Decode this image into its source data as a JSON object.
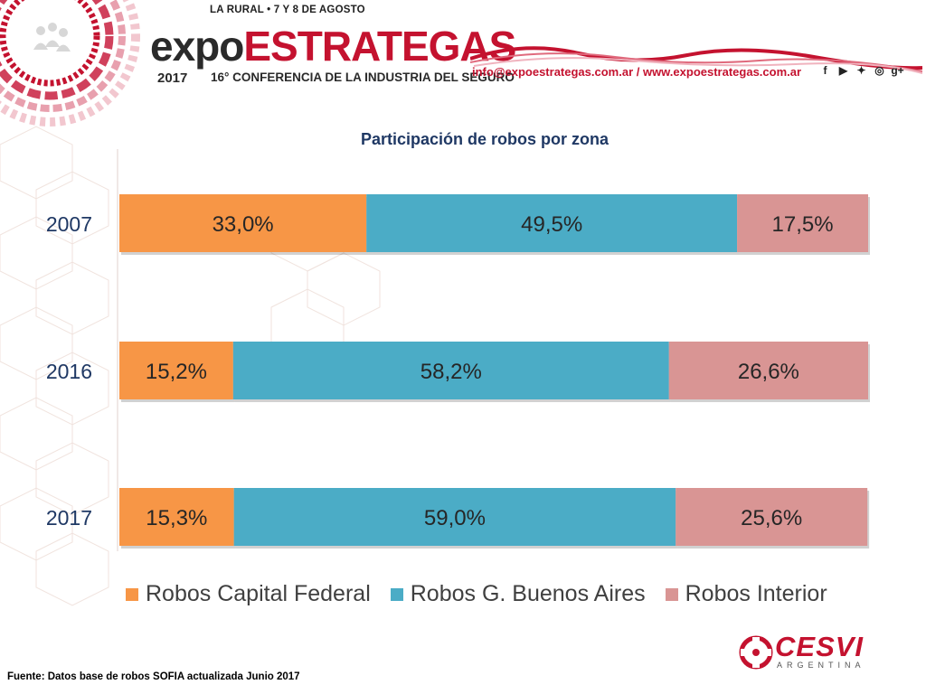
{
  "header": {
    "event_subtitle": "LA RURAL • 7 Y 8 DE AGOSTO",
    "logo_part1": "expo",
    "logo_part2": "ESTRATEGAS",
    "year": "2017",
    "conference": "16° CONFERENCIA DE LA INDUSTRIA DEL SEGURO",
    "contact": "info@expoestrategas.com.ar / www.expoestrategas.com.ar",
    "social_icons": [
      "facebook-icon",
      "youtube-icon",
      "twitter-icon",
      "instagram-icon",
      "google-plus-icon"
    ]
  },
  "chart_data": {
    "type": "bar",
    "orientation": "horizontal",
    "stacked": "percent",
    "title": "Participación de robos por zona",
    "categories": [
      "2007",
      "2016",
      "2017"
    ],
    "series": [
      {
        "name": "Robos Capital Federal",
        "color": "#f79646",
        "values": [
          33.0,
          15.2,
          15.3
        ],
        "labels": [
          "33,0%",
          "15,2%",
          "15,3%"
        ]
      },
      {
        "name": "Robos G. Buenos Aires",
        "color": "#4bacc6",
        "values": [
          49.5,
          58.2,
          59.0
        ],
        "labels": [
          "49,5%",
          "58,2%",
          "59,0%"
        ]
      },
      {
        "name": "Robos Interior",
        "color": "#d99594",
        "values": [
          17.5,
          26.6,
          25.6
        ],
        "labels": [
          "17,5%",
          "26,6%",
          "25,6%"
        ]
      }
    ],
    "xlim": [
      0,
      100
    ],
    "grid": false,
    "legend_position": "bottom"
  },
  "footer": {
    "source": "Fuente: Datos base de robos SOFIA actualizada Junio 2017",
    "brand": "CESVI",
    "brand_sub": "ARGENTINA"
  }
}
